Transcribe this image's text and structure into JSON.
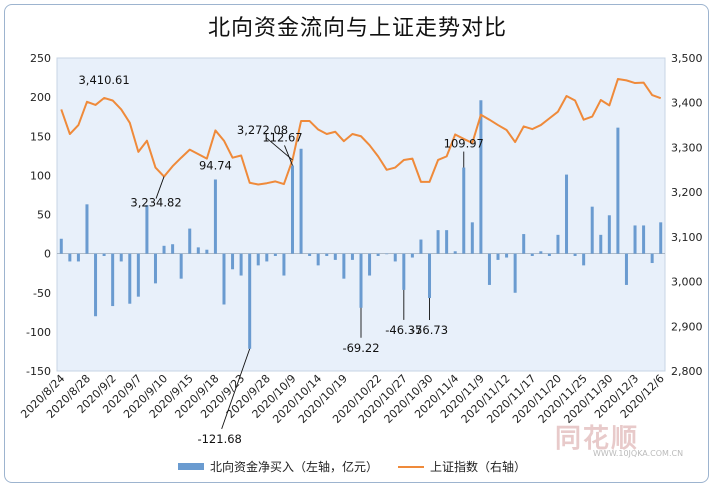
{
  "title": "北向资金流向与上证走势对比",
  "watermark": {
    "brand": "同花顺",
    "url": "WWW.10JQKA.COM.CN"
  },
  "colors": {
    "bar": "#6a9bd0",
    "line": "#ef8a3a",
    "plot_bg": "#e8f0fa"
  },
  "chart_data": {
    "type": "bar+line",
    "left_axis": {
      "min": -150,
      "max": 250,
      "ticks": [
        -150,
        -100,
        -50,
        0,
        50,
        100,
        150,
        200,
        250
      ]
    },
    "right_axis": {
      "min": 2800,
      "max": 3500,
      "ticks": [
        "2,800",
        "2,900",
        "3,000",
        "3,100",
        "3,200",
        "3,300",
        "3,400",
        "3,500"
      ],
      "tick_values": [
        2800,
        2900,
        3000,
        3100,
        3200,
        3300,
        3400,
        3500
      ]
    },
    "x_tick_labels": [
      "2020/8/24",
      "2020/8/28",
      "2020/9/2",
      "2020/9/7",
      "2020/9/10",
      "2020/9/15",
      "2020/9/18",
      "2020/9/23",
      "2020/9/28",
      "2020/10/9",
      "2020/10/14",
      "2020/10/19",
      "2020/10/22",
      "2020/10/27",
      "2020/10/30",
      "2020/11/4",
      "2020/11/9",
      "2020/11/12",
      "2020/11/17",
      "2020/11/20",
      "2020/11/25",
      "2020/11/30",
      "2020/12/3",
      "2020/12/6"
    ],
    "series": [
      {
        "name": "北向资金净买入（左轴，亿元）",
        "axis": "left",
        "type": "bar",
        "values": [
          19,
          -10,
          -10,
          63,
          -80,
          -3,
          -67,
          -10,
          -64,
          -55,
          62,
          -38,
          10,
          12,
          -32,
          32,
          8,
          5,
          94.74,
          -65,
          -20,
          -28,
          -121.68,
          -15,
          -10,
          -3,
          -28,
          112.67,
          134,
          -3,
          -15,
          -3,
          -8,
          -32,
          -8,
          -69.22,
          -28,
          -3,
          0,
          -10,
          -46.37,
          -5,
          18,
          -56.73,
          30,
          30,
          3,
          109.97,
          40,
          196,
          -40,
          -8,
          -5,
          -50,
          25,
          -3,
          3,
          -3,
          24,
          101,
          -3,
          -15,
          60,
          24,
          49,
          161,
          -40,
          36,
          36,
          -12,
          40
        ]
      },
      {
        "name": "上证指数（右轴）",
        "axis": "right",
        "type": "line",
        "values": [
          3385,
          3330,
          3350,
          3402,
          3395,
          3410.61,
          3405,
          3385,
          3355,
          3290,
          3315,
          3255,
          3234.82,
          3258,
          3277,
          3295,
          3285,
          3275,
          3338,
          3315,
          3277,
          3282,
          3221,
          3217,
          3220,
          3224,
          3218,
          3272.08,
          3359,
          3359,
          3340,
          3330,
          3335,
          3314,
          3330,
          3325,
          3305,
          3280,
          3250,
          3255,
          3272,
          3275,
          3223,
          3223,
          3272,
          3280,
          3329,
          3319,
          3310,
          3373,
          3362,
          3350,
          3339,
          3312,
          3347,
          3341,
          3350,
          3365,
          3380,
          3415,
          3405,
          3362,
          3369,
          3406,
          3394,
          3453,
          3450,
          3444,
          3445,
          3417,
          3410
        ]
      }
    ],
    "annotations": [
      {
        "text": "3,410.61",
        "series": "line",
        "index": 5
      },
      {
        "text": "3,234.82",
        "series": "line",
        "index": 12
      },
      {
        "text": "3,272.08",
        "series": "line",
        "index": 27
      },
      {
        "text": "94.74",
        "series": "bar",
        "index": 18
      },
      {
        "text": "112.67",
        "series": "bar",
        "index": 27
      },
      {
        "text": "-121.68",
        "series": "bar",
        "index": 22
      },
      {
        "text": "-69.22",
        "series": "bar",
        "index": 35
      },
      {
        "text": "-46.37",
        "series": "bar",
        "index": 40
      },
      {
        "text": "-56.73",
        "series": "bar",
        "index": 43
      },
      {
        "text": "109.97",
        "series": "bar",
        "index": 47
      }
    ],
    "legend": {
      "placement": "bottom",
      "entries": [
        "北向资金净买入（左轴，亿元）",
        "上证指数（右轴）"
      ]
    },
    "grid": false
  }
}
